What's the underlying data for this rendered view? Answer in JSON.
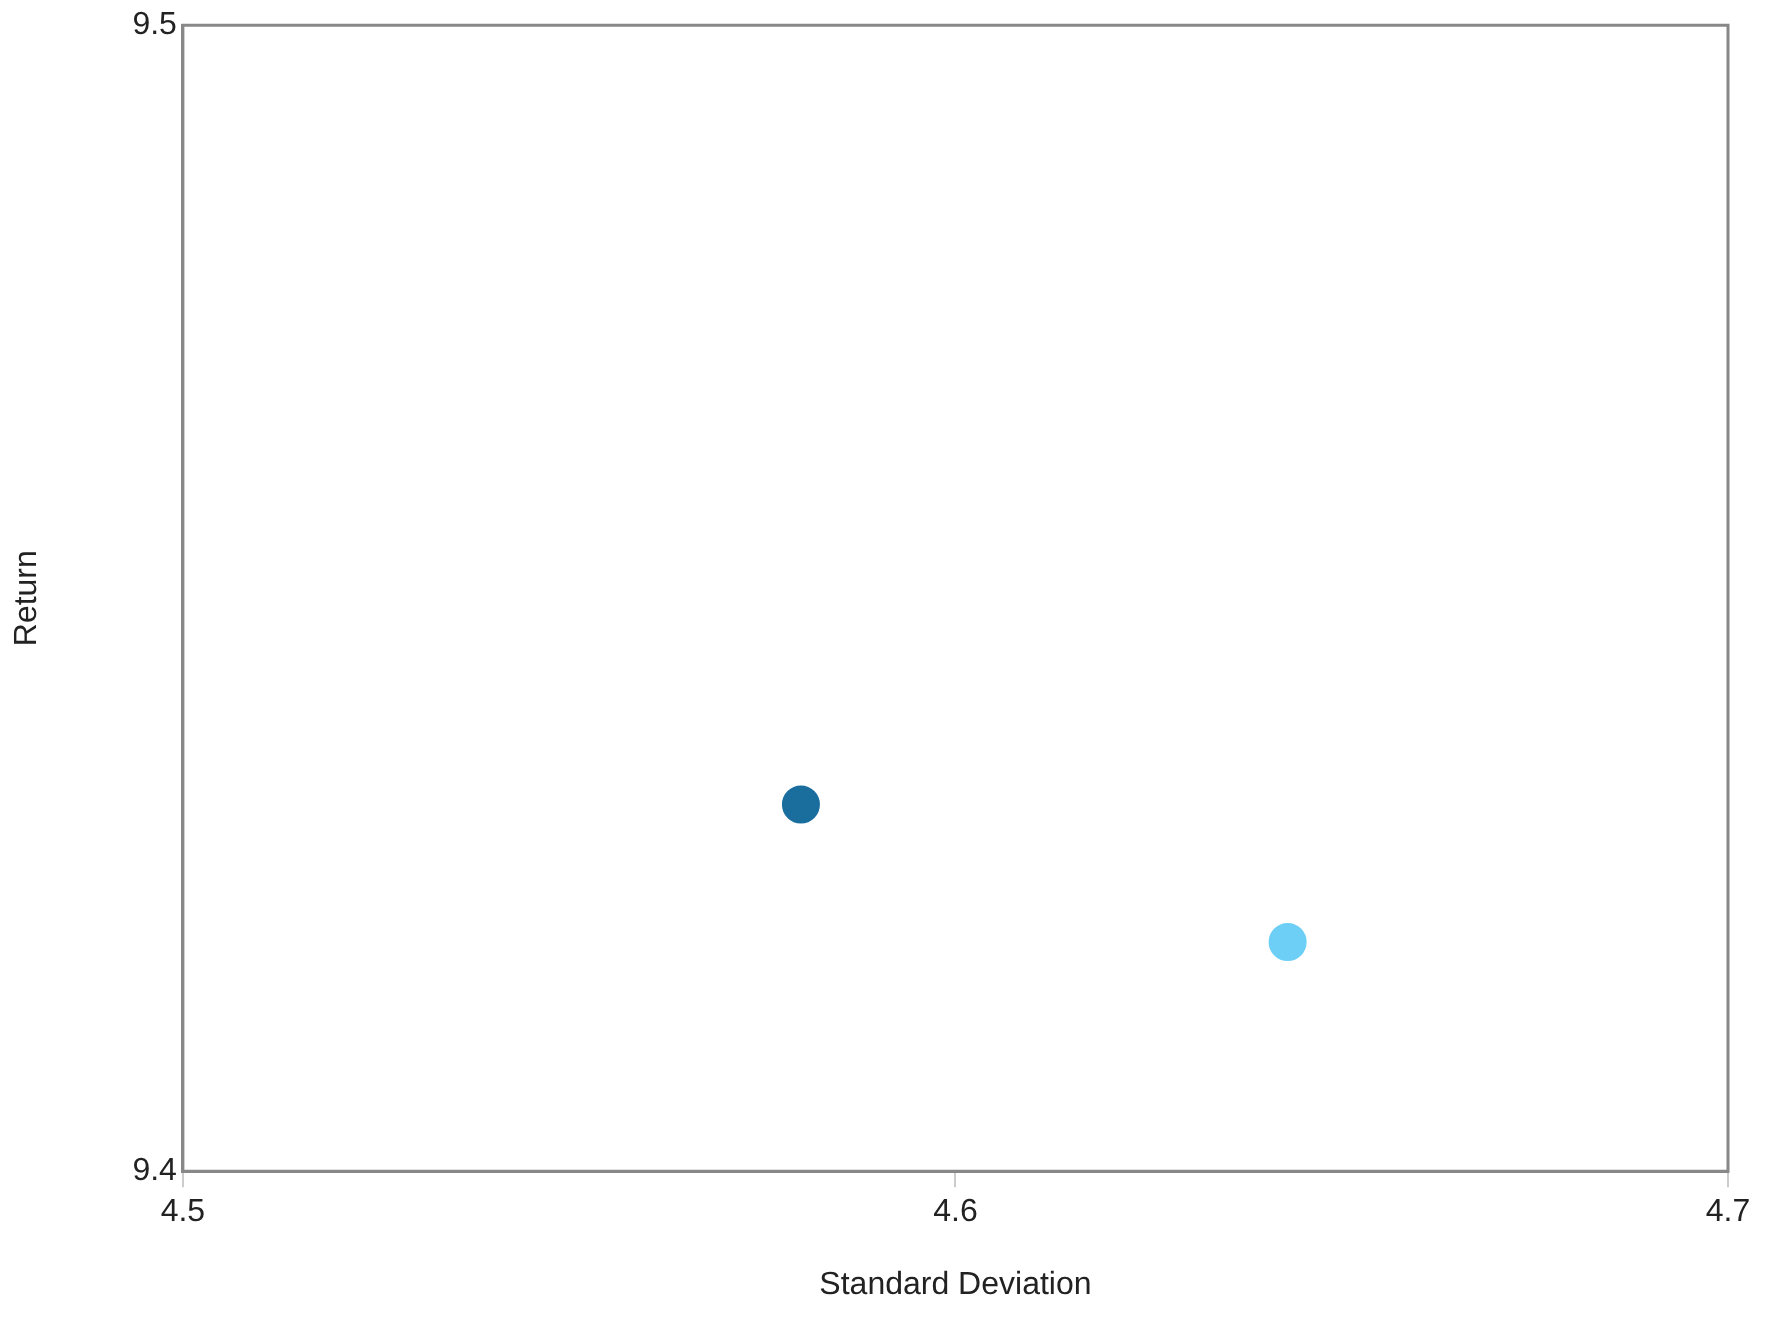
{
  "chart_data": {
    "type": "scatter",
    "xlabel": "Standard Deviation",
    "ylabel": "Return",
    "series": [
      {
        "color": "#1a6e9e",
        "x": [
          4.58
        ],
        "values": [
          9.432
        ]
      },
      {
        "color": "#6dcff6",
        "x": [
          4.643
        ],
        "values": [
          9.42
        ]
      }
    ],
    "xlim": [
      4.5,
      4.7
    ],
    "xticks": [
      4.5,
      4.6,
      4.7
    ],
    "ylim": [
      9.4,
      9.5
    ],
    "yticks": [
      9.4,
      9.5
    ],
    "grid": false,
    "legend": false,
    "marker": "circle"
  }
}
